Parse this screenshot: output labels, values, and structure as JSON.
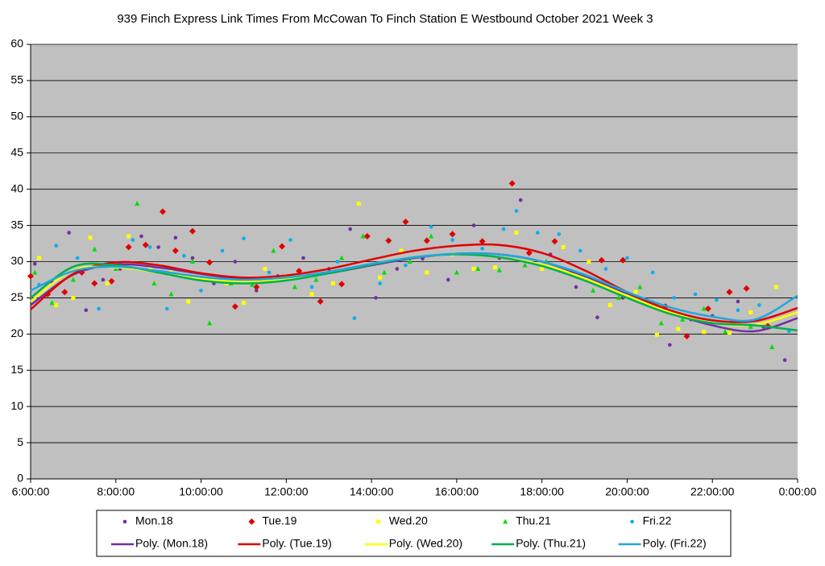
{
  "chart_data": {
    "type": "scatter",
    "title": "939 Finch Express Link Times From McCowan To Finch Station E Westbound October 2021  Week 3",
    "xlim": [
      6,
      24
    ],
    "xticks": [
      {
        "value": 6,
        "label": "6:00:00"
      },
      {
        "value": 8,
        "label": "8:00:00"
      },
      {
        "value": 10,
        "label": "10:00:00"
      },
      {
        "value": 12,
        "label": "12:00:00"
      },
      {
        "value": 14,
        "label": "14:00:00"
      },
      {
        "value": 16,
        "label": "16:00:00"
      },
      {
        "value": 18,
        "label": "18:00:00"
      },
      {
        "value": 20,
        "label": "20:00:00"
      },
      {
        "value": 22,
        "label": "22:00:00"
      },
      {
        "value": 24,
        "label": "0:00:00"
      }
    ],
    "ylim": [
      0,
      60
    ],
    "yticks": [
      0,
      5,
      10,
      15,
      20,
      25,
      30,
      35,
      40,
      45,
      50,
      55,
      60
    ],
    "grid": true,
    "legend": "bottom",
    "series": [
      {
        "name": "Mon.18",
        "color": "#7030a0",
        "marker": "circle",
        "x": [
          6.1,
          6.5,
          6.9,
          7.3,
          7.7,
          8.1,
          8.6,
          9.0,
          9.4,
          9.8,
          10.3,
          10.8,
          11.3,
          11.8,
          12.4,
          13.0,
          13.5,
          14.1,
          14.6,
          15.2,
          15.8,
          16.4,
          17.0,
          17.5,
          18.2,
          18.8,
          19.3,
          19.9,
          20.5,
          21.0,
          21.5,
          22.0,
          22.6,
          23.2,
          23.7
        ],
        "values": [
          29.7,
          27.2,
          34,
          23.3,
          27.5,
          29,
          33.5,
          32,
          33.3,
          30.5,
          27,
          30,
          26,
          28,
          30.5,
          29,
          34.5,
          25,
          29,
          30.4,
          27.5,
          35,
          30.5,
          38.5,
          31,
          26.5,
          22.3,
          25,
          24.5,
          18.5,
          22,
          22.5,
          24.5,
          21,
          16.4
        ]
      },
      {
        "name": "Tue.19",
        "color": "#e00000",
        "marker": "diamond",
        "x": [
          6.0,
          6.4,
          6.8,
          7.2,
          7.5,
          7.9,
          8.3,
          8.7,
          9.1,
          9.4,
          9.8,
          10.2,
          10.8,
          11.3,
          11.9,
          12.3,
          12.8,
          13.3,
          13.9,
          14.4,
          14.8,
          15.3,
          15.9,
          16.6,
          17.3,
          17.7,
          18.3,
          18.7,
          19.4,
          19.9,
          20.4,
          20.9,
          21.4,
          21.9,
          22.4,
          22.8,
          23.3
        ],
        "values": [
          28,
          25.5,
          25.8,
          28.5,
          27,
          27.3,
          32,
          32.3,
          36.9,
          31.5,
          34.2,
          29.9,
          23.8,
          26.5,
          32.1,
          28.7,
          24.5,
          26.9,
          33.5,
          32.9,
          35.5,
          32.9,
          33.8,
          32.8,
          40.8,
          31.2,
          32.8,
          28.5,
          30.2,
          30.2,
          24.5,
          23.8,
          19.7,
          23.5,
          25.8,
          26.3,
          21.1
        ]
      },
      {
        "name": "Wed.20",
        "color": "#ffff00",
        "marker": "square",
        "x": [
          6.2,
          6.6,
          7.0,
          7.4,
          7.8,
          8.3,
          8.8,
          9.3,
          9.7,
          10.1,
          10.6,
          11.0,
          11.5,
          12.0,
          12.6,
          13.1,
          13.7,
          14.2,
          14.7,
          15.3,
          15.9,
          16.4,
          16.9,
          17.4,
          18.0,
          18.5,
          19.1,
          19.6,
          20.2,
          20.7,
          21.2,
          21.8,
          22.4,
          22.9,
          23.5
        ],
        "values": [
          30.5,
          24,
          25,
          33.3,
          27,
          33.5,
          29,
          28.5,
          24.5,
          27.5,
          27,
          24.3,
          29,
          28,
          25.5,
          27,
          38,
          27.8,
          31.5,
          28.5,
          31,
          29,
          29.2,
          34,
          29,
          32,
          30,
          24,
          25.8,
          19.9,
          20.7,
          20.3,
          20.2,
          23,
          26.5
        ]
      },
      {
        "name": "Thu.21",
        "color": "#00dd00",
        "marker": "triangle",
        "x": [
          6.1,
          6.5,
          7.0,
          7.5,
          8.0,
          8.5,
          8.9,
          9.3,
          9.8,
          10.2,
          10.7,
          11.2,
          11.7,
          12.2,
          12.7,
          13.3,
          13.8,
          14.3,
          14.9,
          15.4,
          16.0,
          16.5,
          17.0,
          17.6,
          18.1,
          18.6,
          19.2,
          19.8,
          20.3,
          20.8,
          21.3,
          21.8,
          22.3,
          22.9,
          23.4
        ],
        "values": [
          28.5,
          24.3,
          27.5,
          31.7,
          29,
          38,
          27,
          25.5,
          30,
          21.5,
          27,
          26.8,
          31.5,
          26.5,
          27.5,
          30.5,
          33.5,
          28.5,
          30,
          33.5,
          28.5,
          29,
          28.8,
          29.5,
          30,
          28.5,
          26,
          25,
          26.5,
          21.5,
          22,
          23.5,
          20.3,
          21,
          18.2
        ]
      },
      {
        "name": "Fri.22",
        "color": "#00b0f0",
        "marker": "circle",
        "x": [
          6.2,
          6.6,
          7.1,
          7.6,
          8.1,
          8.4,
          8.8,
          9.2,
          9.6,
          10.0,
          10.5,
          11.0,
          11.6,
          12.1,
          12.6,
          13.2,
          13.6,
          14.2,
          14.8,
          15.4,
          15.9,
          16.6,
          17.1,
          17.4,
          17.9,
          18.4,
          18.9,
          19.5,
          20.0,
          20.6,
          21.1,
          21.6,
          22.1,
          22.6,
          23.1,
          23.8
        ],
        "values": [
          26.8,
          32.2,
          30.5,
          23.5,
          29.7,
          33,
          32,
          23.5,
          30.8,
          26,
          31.5,
          33.2,
          28.5,
          33,
          26.5,
          30,
          22.2,
          27,
          29.5,
          34.8,
          33,
          31.8,
          34.5,
          37,
          34,
          33.8,
          31.5,
          29,
          30.5,
          28.5,
          25,
          25.5,
          24.7,
          23.3,
          24,
          20.4
        ]
      }
    ],
    "trendlines": [
      {
        "name": "Poly. (Mon.18)",
        "color": "#7030a0",
        "x": [
          6,
          7,
          8,
          9,
          10,
          11,
          12,
          13,
          14,
          15,
          16,
          17,
          18,
          19,
          20,
          21,
          22,
          23,
          24
        ],
        "values": [
          24,
          28.2,
          29.6,
          29.2,
          28.3,
          27.6,
          27.7,
          28.4,
          29.5,
          30.5,
          31.1,
          31.0,
          30,
          28,
          25.5,
          23,
          21.2,
          20.4,
          22.2
        ]
      },
      {
        "name": "Poly. (Tue.19)",
        "color": "#e00000",
        "x": [
          6,
          7,
          8,
          9,
          10,
          11,
          12,
          13,
          14,
          15,
          16,
          17,
          18,
          19,
          20,
          21,
          22,
          23,
          24
        ],
        "values": [
          23.4,
          28.3,
          29.9,
          29.5,
          28.4,
          27.8,
          28.1,
          29,
          30.3,
          31.5,
          32.2,
          32.3,
          31.2,
          28.8,
          25.8,
          23.3,
          21.9,
          21.8,
          23.6
        ]
      },
      {
        "name": "Poly. (Wed.20)",
        "color": "#ffff00",
        "x": [
          6,
          7,
          8,
          9,
          10,
          11,
          12,
          13,
          14,
          15,
          16,
          17,
          18,
          19,
          20,
          21,
          22,
          23,
          24
        ],
        "values": [
          24.5,
          28.8,
          29.2,
          28.5,
          27.6,
          27.2,
          27.6,
          28.5,
          29.7,
          30.6,
          31,
          30.6,
          29.6,
          27.7,
          25.3,
          23,
          21.5,
          21.3,
          23
        ]
      },
      {
        "name": "Poly. (Thu.21)",
        "color": "#00b050",
        "x": [
          6,
          7,
          8,
          9,
          10,
          11,
          12,
          13,
          14,
          15,
          16,
          17,
          18,
          19,
          20,
          21,
          22,
          23,
          24
        ],
        "values": [
          25,
          29.3,
          29.5,
          28.5,
          27.4,
          27,
          27.4,
          28.4,
          29.6,
          30.6,
          31,
          30.6,
          29.4,
          27.4,
          25,
          22.8,
          21.5,
          21.2,
          20.5
        ]
      },
      {
        "name": "Poly. (Fri.22)",
        "color": "#1fa8dc",
        "x": [
          6,
          7,
          8,
          9,
          10,
          11,
          12,
          13,
          14,
          15,
          16,
          17,
          18,
          19,
          20,
          21,
          22,
          23,
          24
        ],
        "values": [
          26,
          28.7,
          29.3,
          28.7,
          27.9,
          27.5,
          27.8,
          28.6,
          29.7,
          30.6,
          31.1,
          31,
          30,
          28.2,
          25.8,
          23.7,
          22.4,
          22,
          25.3
        ]
      }
    ]
  }
}
